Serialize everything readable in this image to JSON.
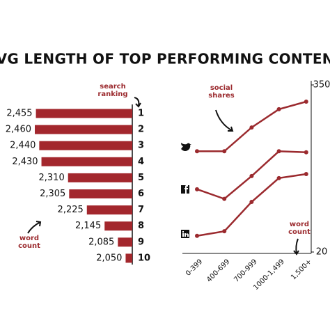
{
  "title": "AVG LENGTH OF TOP PERFORMING CONTENT",
  "chart_data": [
    {
      "type": "bar",
      "orientation": "horizontal",
      "categories": [
        "1",
        "2",
        "3",
        "4",
        "5",
        "6",
        "7",
        "8",
        "9",
        "10"
      ],
      "values": [
        2455,
        2460,
        2440,
        2430,
        2310,
        2305,
        2225,
        2145,
        2085,
        2050
      ],
      "value_labels": [
        "2,455",
        "2,460",
        "2,440",
        "2,430",
        "2,310",
        "2,305",
        "2,225",
        "2,145",
        "2,085",
        "2,050"
      ],
      "xlim": [
        2020,
        2460
      ],
      "color": "#a3272d",
      "category_axis_label": "search ranking",
      "value_axis_label": "word count"
    },
    {
      "type": "line",
      "categories": [
        "0-399",
        "400-699",
        "700-999",
        "1000-1,499",
        "1,500+"
      ],
      "series": [
        {
          "color": "#9b2a2e",
          "values": [
            219,
            219,
            266,
            302,
            317
          ]
        },
        {
          "color": "#9b2a2e",
          "values": [
            144,
            125,
            170,
            219,
            217
          ]
        },
        {
          "color": "#9b2a2e",
          "values": [
            52,
            61,
            119,
            166,
            174
          ]
        }
      ],
      "ylim": [
        20,
        350
      ],
      "yticks": [
        20,
        350
      ],
      "y_axis_label": "social shares",
      "x_axis_label": "word count"
    }
  ]
}
